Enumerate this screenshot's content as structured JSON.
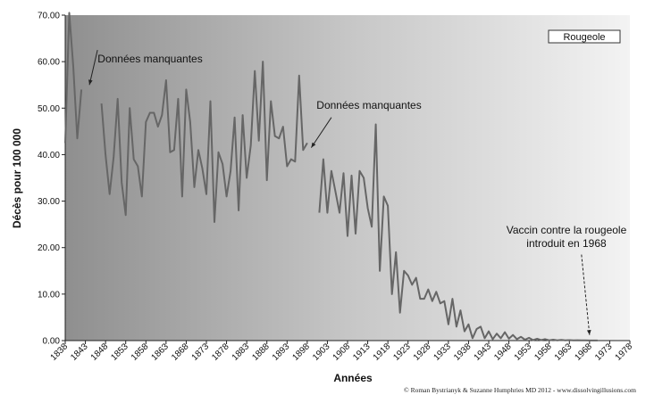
{
  "chart_data": {
    "type": "line",
    "xlabel": "Années",
    "ylabel": "Décès pour 100 000",
    "xlim": [
      1838,
      1978
    ],
    "ylim": [
      0,
      70
    ],
    "y_ticks": [
      "0.00",
      "10.00",
      "20.00",
      "30.00",
      "40.00",
      "50.00",
      "60.00",
      "70.00"
    ],
    "x_ticks": [
      "1838",
      "1843",
      "1848",
      "1853",
      "1858",
      "1863",
      "1868",
      "1873",
      "1878",
      "1883",
      "1888",
      "1893",
      "1898",
      "1903",
      "1908",
      "1913",
      "1918",
      "1923",
      "1928",
      "1933",
      "1938",
      "1943",
      "1948",
      "1953",
      "1958",
      "1963",
      "1968",
      "1973",
      "1978"
    ],
    "grid": false,
    "legend_position": "top-right",
    "series": [
      {
        "name": "Rougeole",
        "color": "#666666",
        "segments": [
          [
            [
              1838,
              42.5
            ],
            [
              1839,
              70.5
            ],
            [
              1840,
              59
            ],
            [
              1841,
              43.5
            ],
            [
              1842,
              54
            ]
          ],
          [
            [
              1847,
              51
            ],
            [
              1848,
              40
            ],
            [
              1849,
              31.5
            ],
            [
              1850,
              39.5
            ],
            [
              1851,
              52
            ],
            [
              1852,
              34
            ],
            [
              1853,
              27
            ],
            [
              1854,
              50
            ],
            [
              1855,
              39
            ],
            [
              1856,
              37.5
            ],
            [
              1857,
              31
            ],
            [
              1858,
              47
            ],
            [
              1859,
              49
            ],
            [
              1860,
              49
            ],
            [
              1861,
              46
            ],
            [
              1862,
              48.5
            ],
            [
              1863,
              56
            ],
            [
              1864,
              40.5
            ],
            [
              1865,
              41
            ],
            [
              1866,
              52
            ],
            [
              1867,
              31
            ],
            [
              1868,
              54
            ],
            [
              1869,
              47
            ],
            [
              1870,
              33
            ],
            [
              1871,
              41
            ],
            [
              1872,
              37
            ],
            [
              1873,
              31.5
            ],
            [
              1874,
              51.5
            ],
            [
              1875,
              25.5
            ],
            [
              1876,
              40.5
            ],
            [
              1877,
              38
            ],
            [
              1878,
              31
            ],
            [
              1879,
              36.5
            ],
            [
              1880,
              48
            ],
            [
              1881,
              28
            ],
            [
              1882,
              48.5
            ],
            [
              1883,
              35
            ],
            [
              1884,
              42
            ],
            [
              1885,
              58
            ],
            [
              1886,
              43
            ],
            [
              1887,
              60
            ],
            [
              1888,
              34.5
            ],
            [
              1889,
              51.5
            ],
            [
              1890,
              44
            ],
            [
              1891,
              43.5
            ],
            [
              1892,
              46
            ],
            [
              1893,
              37.5
            ],
            [
              1894,
              39
            ],
            [
              1895,
              38.5
            ],
            [
              1896,
              57
            ],
            [
              1897,
              41
            ],
            [
              1898,
              42.5
            ]
          ],
          [
            [
              1901,
              27.5
            ],
            [
              1902,
              39
            ],
            [
              1903,
              27.5
            ],
            [
              1904,
              36.5
            ],
            [
              1905,
              32
            ],
            [
              1906,
              27.5
            ],
            [
              1907,
              36
            ],
            [
              1908,
              22.5
            ],
            [
              1909,
              35.5
            ],
            [
              1910,
              23
            ],
            [
              1911,
              36.5
            ],
            [
              1912,
              35
            ],
            [
              1913,
              28.5
            ],
            [
              1914,
              24.5
            ],
            [
              1915,
              46.5
            ],
            [
              1916,
              15
            ],
            [
              1917,
              31
            ],
            [
              1918,
              29
            ],
            [
              1919,
              10
            ],
            [
              1920,
              19
            ],
            [
              1921,
              6
            ],
            [
              1922,
              15
            ],
            [
              1923,
              14
            ],
            [
              1924,
              12
            ],
            [
              1925,
              13.5
            ],
            [
              1926,
              9
            ],
            [
              1927,
              9
            ],
            [
              1928,
              11
            ],
            [
              1929,
              8.5
            ],
            [
              1930,
              10.5
            ],
            [
              1931,
              8
            ],
            [
              1932,
              8.5
            ],
            [
              1933,
              3.5
            ],
            [
              1934,
              9
            ],
            [
              1935,
              3
            ],
            [
              1936,
              6.5
            ],
            [
              1937,
              2
            ],
            [
              1938,
              3.5
            ],
            [
              1939,
              0.5
            ],
            [
              1940,
              2.5
            ],
            [
              1941,
              3
            ],
            [
              1942,
              0.5
            ],
            [
              1943,
              2
            ],
            [
              1944,
              0.3
            ],
            [
              1945,
              1.5
            ],
            [
              1946,
              0.5
            ],
            [
              1947,
              1.8
            ],
            [
              1948,
              0.4
            ],
            [
              1949,
              1.2
            ],
            [
              1950,
              0.3
            ],
            [
              1951,
              0.8
            ],
            [
              1952,
              0.2
            ],
            [
              1953,
              0.6
            ],
            [
              1954,
              0.1
            ],
            [
              1955,
              0.4
            ],
            [
              1956,
              0.1
            ],
            [
              1957,
              0.3
            ],
            [
              1958,
              0.05
            ],
            [
              1959,
              0.2
            ],
            [
              1960,
              0.05
            ],
            [
              1961,
              0.15
            ],
            [
              1962,
              0.05
            ],
            [
              1963,
              0.1
            ],
            [
              1964,
              0.05
            ],
            [
              1965,
              0.08
            ],
            [
              1966,
              0.03
            ],
            [
              1967,
              0.05
            ],
            [
              1968,
              0.02
            ],
            [
              1969,
              0.02
            ],
            [
              1970,
              0.01
            ]
          ]
        ]
      }
    ],
    "annotations": [
      {
        "text": "Données manquantes",
        "lines": [
          "Données manquantes"
        ],
        "arrow_from": [
          1846,
          62.5
        ],
        "arrow_to": [
          1844,
          55
        ]
      },
      {
        "text": "Données manquantes",
        "lines": [
          "Données manquantes"
        ],
        "arrow_from": [
          1904,
          48
        ],
        "arrow_to": [
          1899,
          41.5
        ]
      },
      {
        "text": "Vaccin contre la rougeole introduit en 1968",
        "lines": [
          "Vaccin contre la rougeole",
          "introduit en 1968"
        ],
        "arrow_from": [
          1966,
          18.5
        ],
        "arrow_to": [
          1968,
          1.2
        ]
      }
    ]
  },
  "footer": {
    "credit": "© Roman Bystrianyk & Suzanne Humphries MD 2012 - www.dissolvingillusions.com"
  }
}
